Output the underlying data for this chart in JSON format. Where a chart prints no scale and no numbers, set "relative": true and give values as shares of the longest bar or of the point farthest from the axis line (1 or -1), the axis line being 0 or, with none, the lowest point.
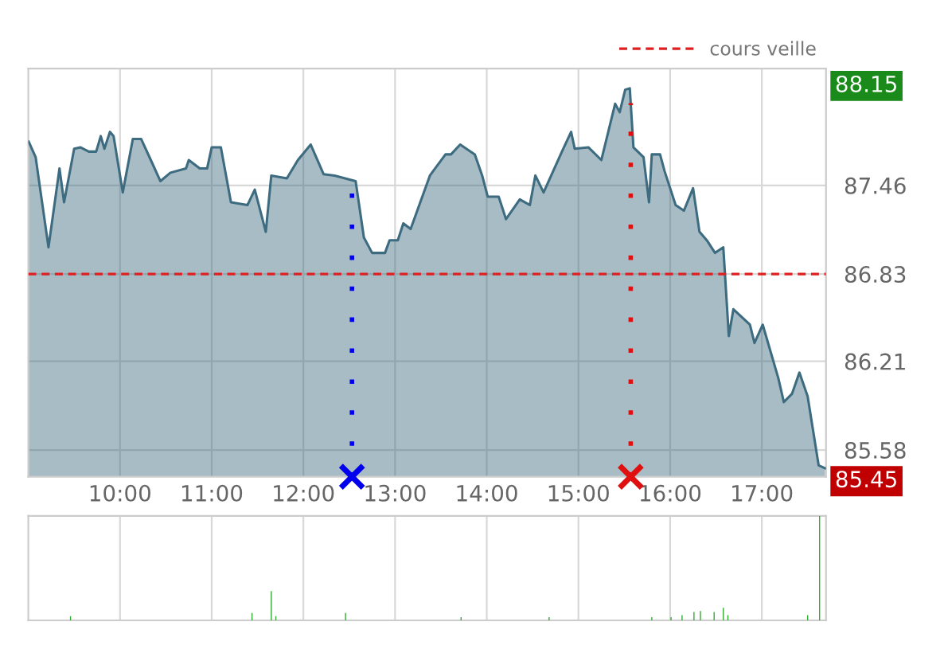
{
  "chart_data": [
    {
      "type": "area",
      "x": [
        9.005,
        9.08,
        9.22,
        9.34,
        9.39,
        9.5,
        9.57,
        9.66,
        9.74,
        9.79,
        9.83,
        9.89,
        9.93,
        10.03,
        10.14,
        10.23,
        10.35,
        10.44,
        10.55,
        10.72,
        10.75,
        10.87,
        10.95,
        11.0,
        11.1,
        11.21,
        11.39,
        11.47,
        11.59,
        11.65,
        11.82,
        11.94,
        12.08,
        12.22,
        12.34,
        12.57,
        12.66,
        12.75,
        12.89,
        12.94,
        13.03,
        13.09,
        13.17,
        13.38,
        13.55,
        13.61,
        13.71,
        13.87,
        13.95,
        14.01,
        14.13,
        14.21,
        14.36,
        14.47,
        14.53,
        14.62,
        14.82,
        14.92,
        14.96,
        15.11,
        15.25,
        15.4,
        15.45,
        15.51,
        15.56,
        15.6,
        15.71,
        15.77,
        15.8,
        15.89,
        15.94,
        16.06,
        16.15,
        16.25,
        16.32,
        16.4,
        16.49,
        16.58,
        16.64,
        16.69,
        16.87,
        16.92,
        17.01,
        17.18,
        17.24,
        17.33,
        17.41,
        17.5,
        17.62,
        17.69
      ],
      "series": [
        {
          "color": "#3d6b80",
          "values": [
            87.77,
            87.66,
            87.02,
            87.58,
            87.34,
            87.72,
            87.73,
            87.7,
            87.7,
            87.81,
            87.72,
            87.84,
            87.81,
            87.41,
            87.79,
            87.79,
            87.62,
            87.49,
            87.55,
            87.58,
            87.64,
            87.58,
            87.58,
            87.73,
            87.73,
            87.34,
            87.32,
            87.43,
            87.13,
            87.53,
            87.51,
            87.64,
            87.75,
            87.54,
            87.53,
            87.49,
            87.09,
            86.98,
            86.98,
            87.07,
            87.07,
            87.19,
            87.15,
            87.53,
            87.68,
            87.68,
            87.75,
            87.68,
            87.53,
            87.38,
            87.38,
            87.22,
            87.36,
            87.32,
            87.53,
            87.41,
            87.7,
            87.84,
            87.72,
            87.73,
            87.64,
            88.04,
            87.98,
            88.14,
            88.15,
            87.73,
            87.66,
            87.34,
            87.68,
            87.68,
            87.56,
            87.32,
            87.28,
            87.44,
            87.13,
            87.07,
            86.98,
            87.02,
            86.39,
            86.58,
            86.47,
            86.34,
            86.47,
            86.09,
            85.92,
            85.98,
            86.13,
            85.96,
            85.47,
            85.45
          ]
        }
      ],
      "xlim": [
        9,
        17.7
      ],
      "ylim": [
        85.39,
        88.29
      ],
      "xticks": [
        {
          "value": 10,
          "label": "10:00"
        },
        {
          "value": 11,
          "label": "11:00"
        },
        {
          "value": 12,
          "label": "12:00"
        },
        {
          "value": 13,
          "label": "13:00"
        },
        {
          "value": 14,
          "label": "14:00"
        },
        {
          "value": 15,
          "label": "15:00"
        },
        {
          "value": 16,
          "label": "16:00"
        },
        {
          "value": 17,
          "label": "17:00"
        }
      ],
      "yticks": [
        85.58,
        86.21,
        86.83,
        87.46
      ],
      "ref_lines": [
        {
          "axis": "y",
          "value": 86.83,
          "label": "cours veille",
          "color": "#e02020",
          "line_style": "dashed"
        },
        {
          "axis": "x",
          "value": 12.53,
          "label": null,
          "color": "#0000ee",
          "line_style": "dotted"
        },
        {
          "axis": "x",
          "value": 15.57,
          "label": null,
          "color": "#e01010",
          "line_style": "dotted"
        }
      ],
      "annotations": [
        "88.15",
        "85.45"
      ],
      "grid": true,
      "legend": "top right"
    },
    {
      "type": "bar",
      "relative": true,
      "x": [
        9.46,
        11.44,
        11.65,
        11.7,
        12.46,
        13.72,
        14.68,
        15.8,
        16.01,
        16.13,
        16.26,
        16.33,
        16.48,
        16.58,
        16.63,
        17.5,
        17.63
      ],
      "values": [
        0.04,
        0.07,
        0.28,
        0.04,
        0.07,
        0.03,
        0.03,
        0.03,
        0.03,
        0.05,
        0.08,
        0.09,
        0.08,
        0.12,
        0.05,
        0.05,
        1
      ],
      "color": "#33aa33",
      "xlim": [
        9,
        17.7
      ],
      "xticks": [
        10,
        11,
        12,
        13,
        14,
        15,
        16,
        17
      ],
      "tick_labels": false,
      "grid": "x"
    }
  ]
}
